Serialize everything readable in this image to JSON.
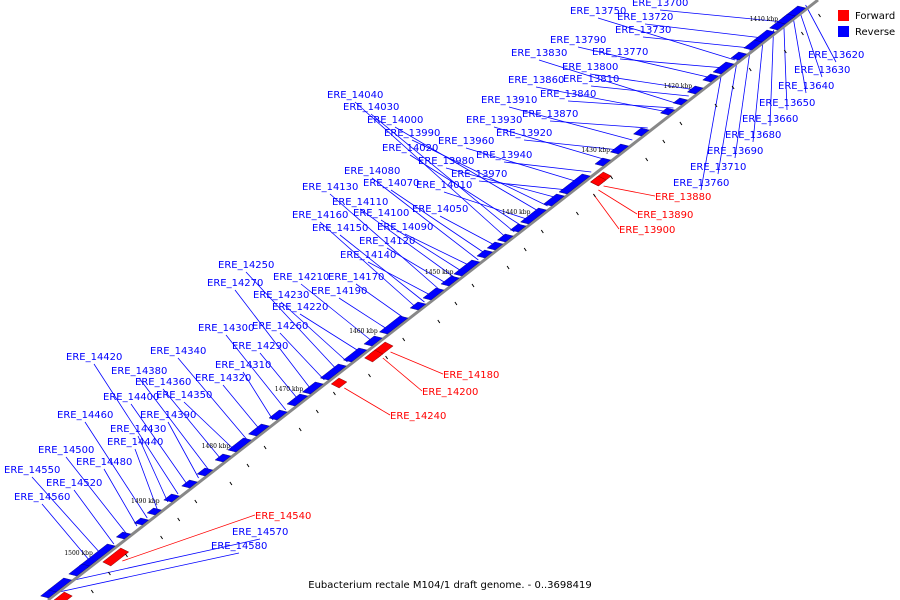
{
  "caption": "Eubacterium rectale M104/1 draft genome. - 0..3698419",
  "legend": [
    {
      "label": "Forward",
      "color": "#ff0000"
    },
    {
      "label": "Reverse",
      "color": "#0000ff"
    }
  ],
  "colors": {
    "forward": "#ff0000",
    "reverse": "#0000ff",
    "backbone": "#888888"
  },
  "kbp_ticks": [
    "1410 kbp",
    "1420 kbp",
    "1430 kbp",
    "1440 kbp",
    "1450 kbp",
    "1460 kbp",
    "1470 kbp",
    "1480 kbp",
    "1490 kbp",
    "1500 kbp"
  ],
  "reverse_genes": [
    "ERE_13620",
    "ERE_13630",
    "ERE_13640",
    "ERE_13650",
    "ERE_13660",
    "ERE_13680",
    "ERE_13690",
    "ERE_13700",
    "ERE_13710",
    "ERE_13720",
    "ERE_13730",
    "ERE_13750",
    "ERE_13760",
    "ERE_13770",
    "ERE_13790",
    "ERE_13800",
    "ERE_13810",
    "ERE_13830",
    "ERE_13840",
    "ERE_13860",
    "ERE_13870",
    "ERE_13910",
    "ERE_13920",
    "ERE_13930",
    "ERE_13940",
    "ERE_13960",
    "ERE_13970",
    "ERE_13980",
    "ERE_13990",
    "ERE_14000",
    "ERE_14010",
    "ERE_14020",
    "ERE_14030",
    "ERE_14040",
    "ERE_14050",
    "ERE_14070",
    "ERE_14080",
    "ERE_14090",
    "ERE_14100",
    "ERE_14110",
    "ERE_14120",
    "ERE_14130",
    "ERE_14140",
    "ERE_14150",
    "ERE_14160",
    "ERE_14170",
    "ERE_14190",
    "ERE_14210",
    "ERE_14220",
    "ERE_14230",
    "ERE_14250",
    "ERE_14260",
    "ERE_14270",
    "ERE_14290",
    "ERE_14300",
    "ERE_14310",
    "ERE_14320",
    "ERE_14340",
    "ERE_14350",
    "ERE_14360",
    "ERE_14380",
    "ERE_14390",
    "ERE_14400",
    "ERE_14420",
    "ERE_14430",
    "ERE_14440",
    "ERE_14460",
    "ERE_14480",
    "ERE_14500",
    "ERE_14520",
    "ERE_14550",
    "ERE_14560",
    "ERE_14570",
    "ERE_14580"
  ],
  "forward_genes": [
    "ERE_13880",
    "ERE_13890",
    "ERE_13900",
    "ERE_14180",
    "ERE_14200",
    "ERE_14240",
    "ERE_14540"
  ]
}
